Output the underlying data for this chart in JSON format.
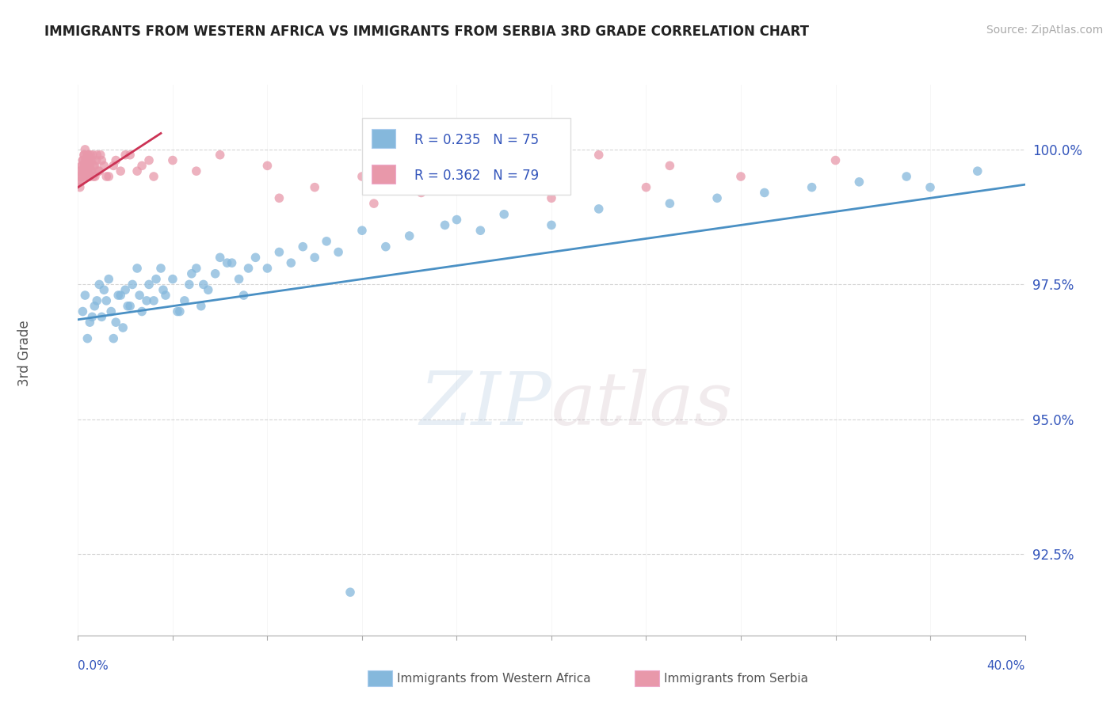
{
  "title": "IMMIGRANTS FROM WESTERN AFRICA VS IMMIGRANTS FROM SERBIA 3RD GRADE CORRELATION CHART",
  "source": "Source: ZipAtlas.com",
  "ylabel": "3rd Grade",
  "xlim": [
    0.0,
    40.0
  ],
  "ylim": [
    91.0,
    101.2
  ],
  "yticks": [
    92.5,
    95.0,
    97.5,
    100.0
  ],
  "ytick_labels": [
    "92.5%",
    "95.0%",
    "97.5%",
    "100.0%"
  ],
  "R_blue": 0.235,
  "N_blue": 75,
  "R_pink": 0.362,
  "N_pink": 79,
  "blue_color": "#85b8dc",
  "pink_color": "#e898aa",
  "trend_blue": "#4a90c4",
  "trend_pink": "#cc3355",
  "title_color": "#222222",
  "axis_color": "#3355bb",
  "blue_trend_x0": 0.0,
  "blue_trend_y0": 96.85,
  "blue_trend_x1": 40.0,
  "blue_trend_y1": 99.35,
  "pink_trend_x0": 0.0,
  "pink_trend_y0": 99.3,
  "pink_trend_x1": 3.5,
  "pink_trend_y1": 100.3,
  "blue_x": [
    0.3,
    0.5,
    0.7,
    0.9,
    1.0,
    1.2,
    1.4,
    1.5,
    1.7,
    1.9,
    2.0,
    2.2,
    2.5,
    2.7,
    3.0,
    3.2,
    3.5,
    3.7,
    4.0,
    4.2,
    4.5,
    4.7,
    5.0,
    5.2,
    5.5,
    5.8,
    6.0,
    6.3,
    6.8,
    7.0,
    7.5,
    8.0,
    8.5,
    9.0,
    9.5,
    10.0,
    10.5,
    11.0,
    12.0,
    13.0,
    14.0,
    15.5,
    16.0,
    17.0,
    18.0,
    20.0,
    22.0,
    25.0,
    27.0,
    29.0,
    31.0,
    33.0,
    35.0,
    36.0,
    38.0,
    0.2,
    0.4,
    0.6,
    0.8,
    1.1,
    1.3,
    1.6,
    1.8,
    2.1,
    2.3,
    2.6,
    2.9,
    3.3,
    3.6,
    4.3,
    4.8,
    5.3,
    6.5,
    7.2,
    11.5
  ],
  "blue_y": [
    97.3,
    96.8,
    97.1,
    97.5,
    96.9,
    97.2,
    97.0,
    96.5,
    97.3,
    96.7,
    97.4,
    97.1,
    97.8,
    97.0,
    97.5,
    97.2,
    97.8,
    97.3,
    97.6,
    97.0,
    97.2,
    97.5,
    97.8,
    97.1,
    97.4,
    97.7,
    98.0,
    97.9,
    97.6,
    97.3,
    98.0,
    97.8,
    98.1,
    97.9,
    98.2,
    98.0,
    98.3,
    98.1,
    98.5,
    98.2,
    98.4,
    98.6,
    98.7,
    98.5,
    98.8,
    98.6,
    98.9,
    99.0,
    99.1,
    99.2,
    99.3,
    99.4,
    99.5,
    99.3,
    99.6,
    97.0,
    96.5,
    96.9,
    97.2,
    97.4,
    97.6,
    96.8,
    97.3,
    97.1,
    97.5,
    97.3,
    97.2,
    97.6,
    97.4,
    97.0,
    97.7,
    97.5,
    97.9,
    97.8,
    91.8
  ],
  "pink_x": [
    0.05,
    0.08,
    0.1,
    0.12,
    0.15,
    0.18,
    0.2,
    0.22,
    0.25,
    0.28,
    0.3,
    0.32,
    0.35,
    0.38,
    0.4,
    0.42,
    0.45,
    0.48,
    0.5,
    0.52,
    0.55,
    0.6,
    0.65,
    0.7,
    0.8,
    0.9,
    1.0,
    1.2,
    1.5,
    2.0,
    2.5,
    3.0,
    0.07,
    0.11,
    0.14,
    0.17,
    0.21,
    0.24,
    0.27,
    0.31,
    0.34,
    0.37,
    0.41,
    0.44,
    0.47,
    0.51,
    0.54,
    0.58,
    0.62,
    0.67,
    0.72,
    0.78,
    0.85,
    0.95,
    1.1,
    1.3,
    1.6,
    1.8,
    2.2,
    2.7,
    3.2,
    4.0,
    5.0,
    6.0,
    8.0,
    12.0,
    15.0,
    18.0,
    22.0,
    25.0,
    28.0,
    32.0,
    8.5,
    10.0,
    12.5,
    14.5,
    16.0,
    20.0,
    24.0
  ],
  "pink_y": [
    99.5,
    99.3,
    99.6,
    99.4,
    99.7,
    99.5,
    99.8,
    99.6,
    99.9,
    99.7,
    100.0,
    99.8,
    99.5,
    99.7,
    99.9,
    99.6,
    99.8,
    99.5,
    99.7,
    99.9,
    99.6,
    99.8,
    99.5,
    99.7,
    99.9,
    99.6,
    99.8,
    99.5,
    99.7,
    99.9,
    99.6,
    99.8,
    99.4,
    99.6,
    99.5,
    99.7,
    99.8,
    99.6,
    99.9,
    99.7,
    99.5,
    99.8,
    99.6,
    99.9,
    99.7,
    99.5,
    99.8,
    99.6,
    99.9,
    99.7,
    99.5,
    99.8,
    99.6,
    99.9,
    99.7,
    99.5,
    99.8,
    99.6,
    99.9,
    99.7,
    99.5,
    99.8,
    99.6,
    99.9,
    99.7,
    99.5,
    99.8,
    99.6,
    99.9,
    99.7,
    99.5,
    99.8,
    99.1,
    99.3,
    99.0,
    99.2,
    99.4,
    99.1,
    99.3
  ]
}
